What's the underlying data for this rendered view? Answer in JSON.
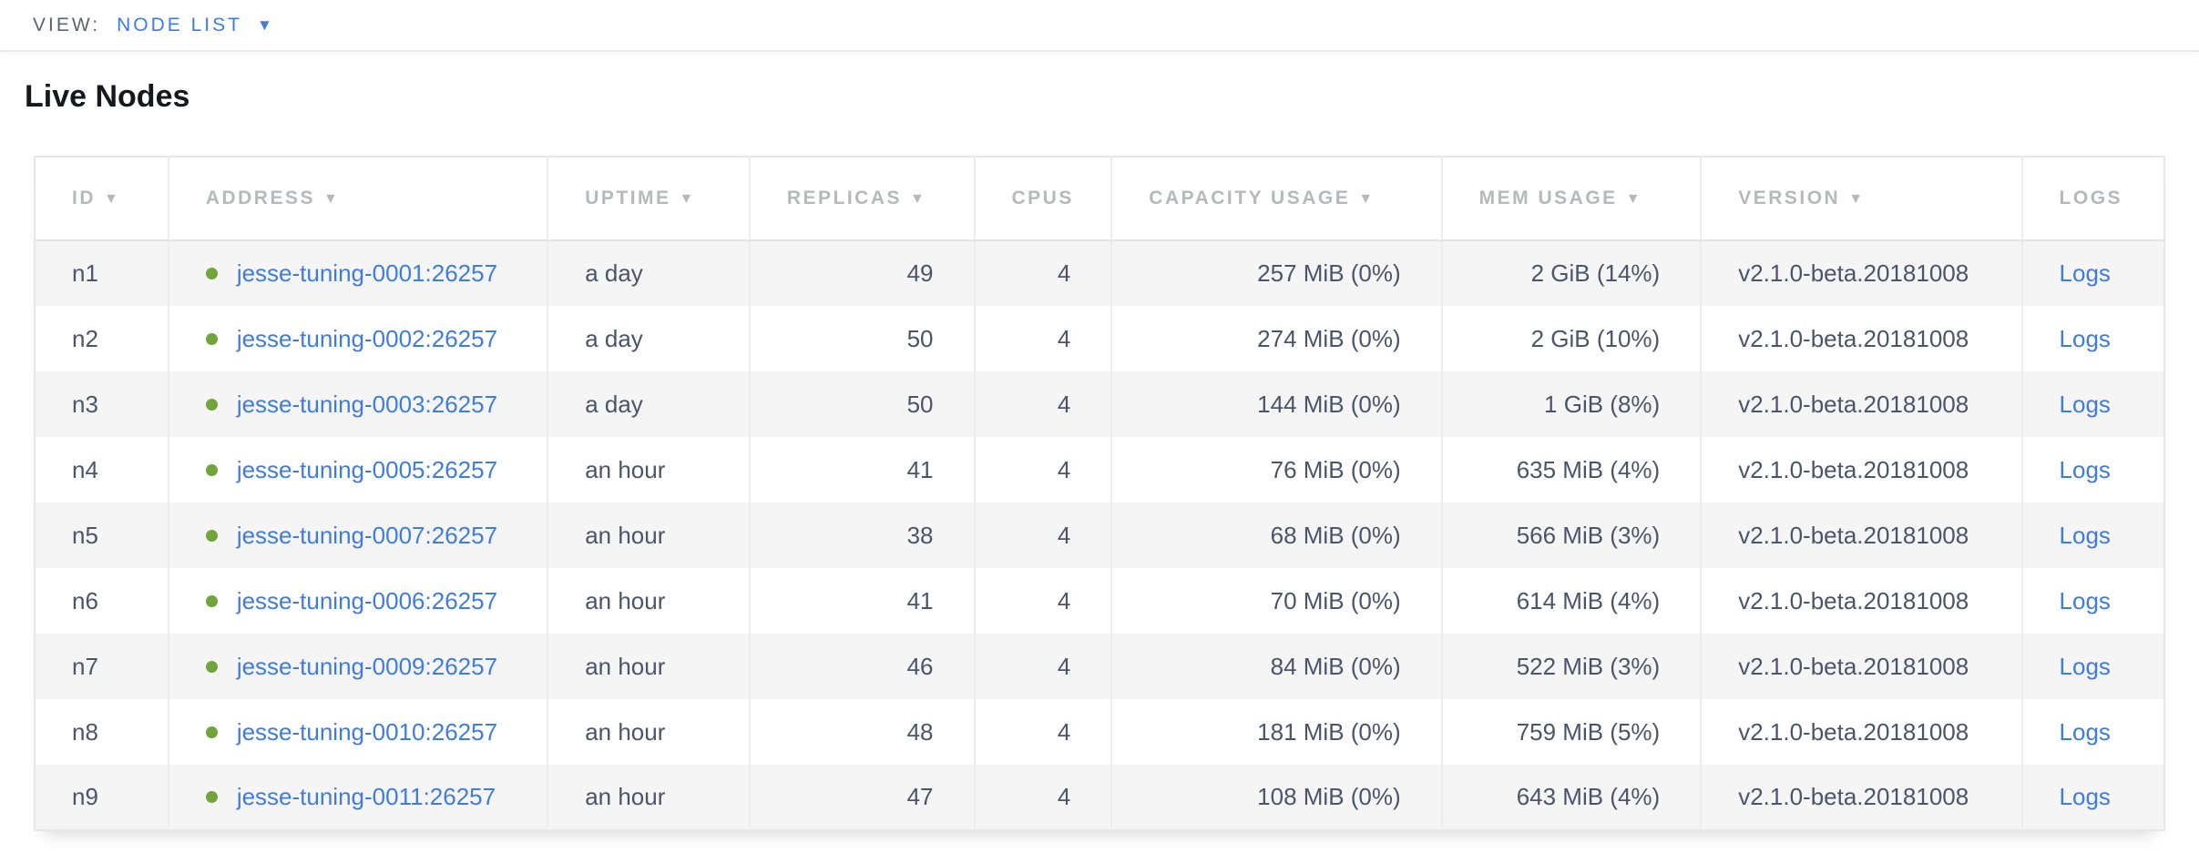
{
  "view_bar": {
    "label": "VIEW:",
    "selected": "NODE LIST",
    "caret_icon": "▼"
  },
  "page": {
    "title": "Live Nodes"
  },
  "colors": {
    "link_blue": "#3f7ce2",
    "live_dot_green": "#72a43c",
    "header_gray": "#b6b8bd",
    "cell_text": "#4b5468",
    "row_stripe": "#f5f5f6"
  },
  "table": {
    "sort_arrow": "▼",
    "columns": [
      {
        "key": "id",
        "label": "ID",
        "has_sort_arrow": true,
        "align": "left"
      },
      {
        "key": "address",
        "label": "ADDRESS",
        "has_sort_arrow": true,
        "align": "left"
      },
      {
        "key": "uptime",
        "label": "UPTIME",
        "has_sort_arrow": true,
        "align": "left"
      },
      {
        "key": "replicas",
        "label": "REPLICAS",
        "has_sort_arrow": true,
        "align": "right"
      },
      {
        "key": "cpus",
        "label": "CPUS",
        "has_sort_arrow": false,
        "align": "right"
      },
      {
        "key": "capacity",
        "label": "CAPACITY USAGE",
        "has_sort_arrow": true,
        "align": "right"
      },
      {
        "key": "mem",
        "label": "MEM USAGE",
        "has_sort_arrow": true,
        "align": "right"
      },
      {
        "key": "version",
        "label": "VERSION",
        "has_sort_arrow": true,
        "align": "left"
      },
      {
        "key": "logs",
        "label": "LOGS",
        "has_sort_arrow": false,
        "align": "left"
      }
    ],
    "rows": [
      {
        "id": "n1",
        "address": "jesse-tuning-0001:26257",
        "uptime": "a day",
        "replicas": "49",
        "cpus": "4",
        "capacity": "257 MiB (0%)",
        "mem": "2 GiB (14%)",
        "version": "v2.1.0-beta.20181008",
        "logs": "Logs"
      },
      {
        "id": "n2",
        "address": "jesse-tuning-0002:26257",
        "uptime": "a day",
        "replicas": "50",
        "cpus": "4",
        "capacity": "274 MiB (0%)",
        "mem": "2 GiB (10%)",
        "version": "v2.1.0-beta.20181008",
        "logs": "Logs"
      },
      {
        "id": "n3",
        "address": "jesse-tuning-0003:26257",
        "uptime": "a day",
        "replicas": "50",
        "cpus": "4",
        "capacity": "144 MiB (0%)",
        "mem": "1 GiB (8%)",
        "version": "v2.1.0-beta.20181008",
        "logs": "Logs"
      },
      {
        "id": "n4",
        "address": "jesse-tuning-0005:26257",
        "uptime": "an hour",
        "replicas": "41",
        "cpus": "4",
        "capacity": "76 MiB (0%)",
        "mem": "635 MiB (4%)",
        "version": "v2.1.0-beta.20181008",
        "logs": "Logs"
      },
      {
        "id": "n5",
        "address": "jesse-tuning-0007:26257",
        "uptime": "an hour",
        "replicas": "38",
        "cpus": "4",
        "capacity": "68 MiB (0%)",
        "mem": "566 MiB (3%)",
        "version": "v2.1.0-beta.20181008",
        "logs": "Logs"
      },
      {
        "id": "n6",
        "address": "jesse-tuning-0006:26257",
        "uptime": "an hour",
        "replicas": "41",
        "cpus": "4",
        "capacity": "70 MiB (0%)",
        "mem": "614 MiB (4%)",
        "version": "v2.1.0-beta.20181008",
        "logs": "Logs"
      },
      {
        "id": "n7",
        "address": "jesse-tuning-0009:26257",
        "uptime": "an hour",
        "replicas": "46",
        "cpus": "4",
        "capacity": "84 MiB (0%)",
        "mem": "522 MiB (3%)",
        "version": "v2.1.0-beta.20181008",
        "logs": "Logs"
      },
      {
        "id": "n8",
        "address": "jesse-tuning-0010:26257",
        "uptime": "an hour",
        "replicas": "48",
        "cpus": "4",
        "capacity": "181 MiB (0%)",
        "mem": "759 MiB (5%)",
        "version": "v2.1.0-beta.20181008",
        "logs": "Logs"
      },
      {
        "id": "n9",
        "address": "jesse-tuning-0011:26257",
        "uptime": "an hour",
        "replicas": "47",
        "cpus": "4",
        "capacity": "108 MiB (0%)",
        "mem": "643 MiB (4%)",
        "version": "v2.1.0-beta.20181008",
        "logs": "Logs"
      }
    ]
  }
}
